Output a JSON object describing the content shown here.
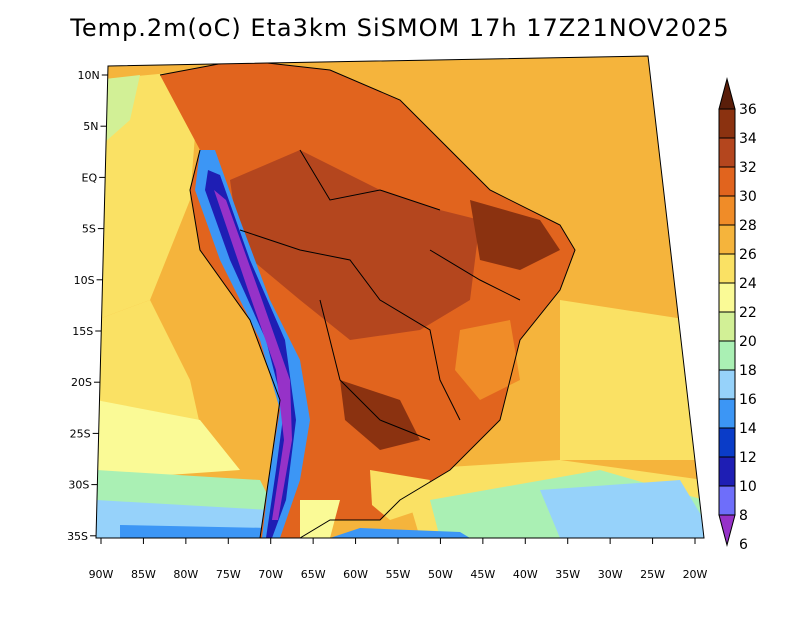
{
  "title": "Temp.2m(oC) Eta3km SiSMOM 17h 17Z21NOV2025",
  "map": {
    "lat_labels": [
      "10N",
      "5N",
      "EQ",
      "5S",
      "10S",
      "15S",
      "20S",
      "25S",
      "30S",
      "35S"
    ],
    "lon_labels": [
      "90W",
      "85W",
      "80W",
      "75W",
      "70W",
      "65W",
      "60W",
      "55W",
      "50W",
      "45W",
      "40W",
      "35W",
      "30W",
      "25W",
      "20W"
    ]
  },
  "legend": {
    "values": [
      "36",
      "34",
      "32",
      "30",
      "28",
      "26",
      "24",
      "22",
      "20",
      "18",
      "16",
      "14",
      "12",
      "10",
      "8",
      "6"
    ],
    "colors": [
      "#5a1e0a",
      "#8b3210",
      "#b4461e",
      "#e1641e",
      "#f08c28",
      "#f5b43c",
      "#fae164",
      "#fafa96",
      "#d2f096",
      "#aaf0b4",
      "#96d2fa",
      "#3c96f5",
      "#0a3cc8",
      "#1e1eb4",
      "#6e6efa",
      "#9632c8"
    ]
  }
}
